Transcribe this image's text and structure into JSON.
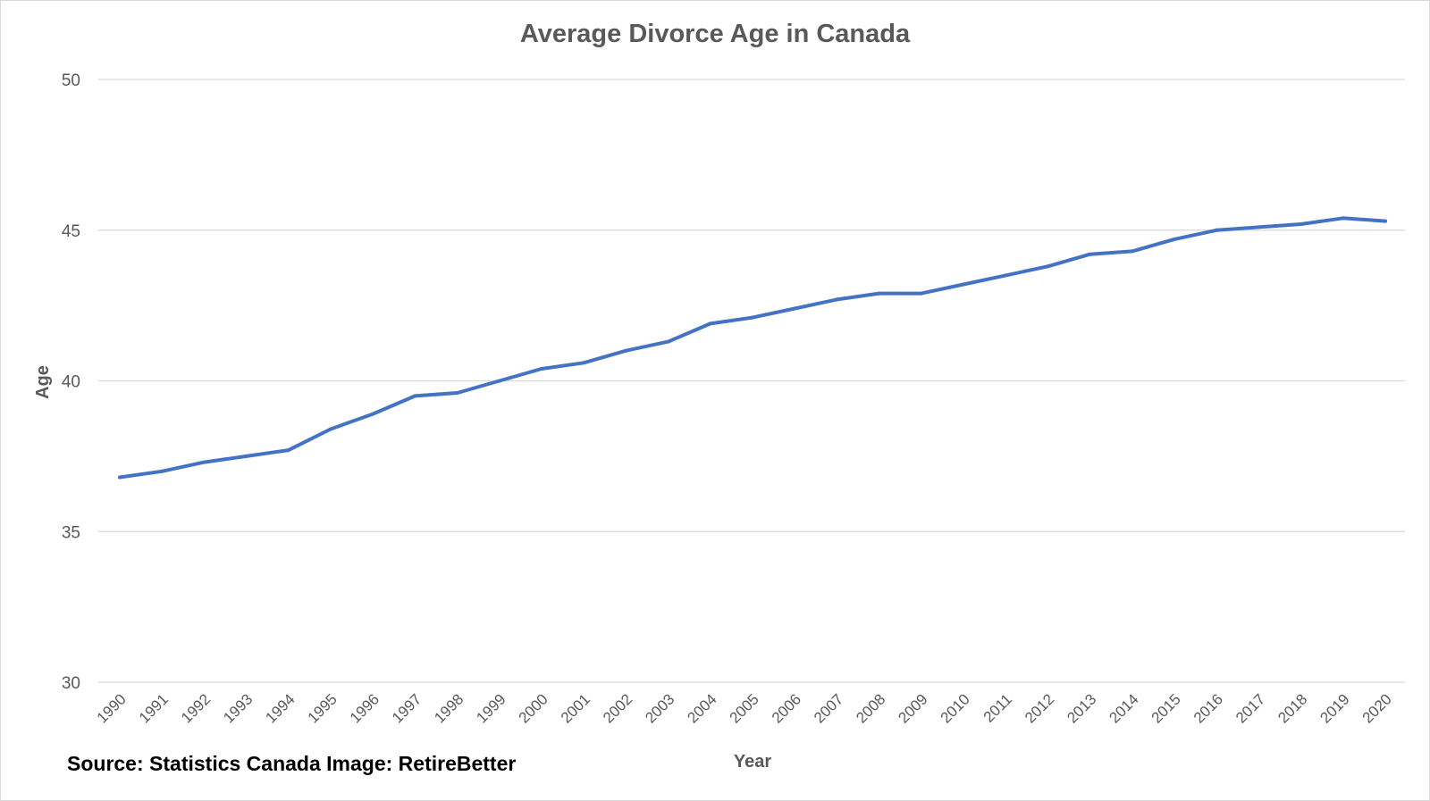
{
  "chart_data": {
    "type": "line",
    "title": "Average Divorce Age in Canada",
    "xlabel": "Year",
    "ylabel": "Age",
    "ylim": [
      30,
      50
    ],
    "yticks": [
      30,
      35,
      40,
      45,
      50
    ],
    "grid": true,
    "categories": [
      "1990",
      "1991",
      "1992",
      "1993",
      "1994",
      "1995",
      "1996",
      "1997",
      "1998",
      "1999",
      "2000",
      "2001",
      "2002",
      "2003",
      "2004",
      "2005",
      "2006",
      "2007",
      "2008",
      "2009",
      "2010",
      "2011",
      "2012",
      "2013",
      "2014",
      "2015",
      "2016",
      "2017",
      "2018",
      "2019",
      "2020"
    ],
    "series": [
      {
        "name": "Average Divorce Age",
        "color": "#4472C4",
        "values": [
          36.8,
          37.0,
          37.3,
          37.5,
          37.7,
          38.4,
          38.9,
          39.5,
          39.6,
          40.0,
          40.4,
          40.6,
          41.0,
          41.3,
          41.9,
          42.1,
          42.4,
          42.7,
          42.9,
          42.9,
          43.2,
          43.5,
          43.8,
          44.2,
          44.3,
          44.7,
          45.0,
          45.1,
          45.2,
          45.4,
          45.3
        ]
      }
    ]
  },
  "footer": {
    "source": "Source: Statistics Canada Image: RetireBetter"
  },
  "colors": {
    "line": "#4472C4",
    "grid": "#d9d9d9",
    "text": "#595959"
  }
}
